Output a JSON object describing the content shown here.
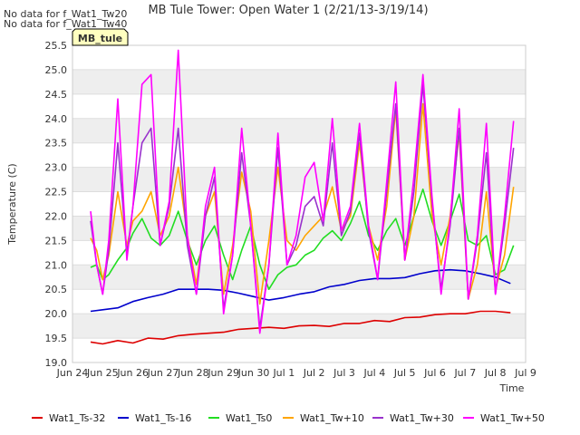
{
  "header": {
    "notes": [
      "No data for f_Wat1_Tw20",
      "No data for f_Wat1_Tw40"
    ],
    "badge": "MB_tule"
  },
  "chart_data": {
    "type": "line",
    "title": "MB Tule Tower: Open Water 1 (2/21/13-3/19/14)",
    "xlabel": "Time",
    "ylabel": "Temperature (C)",
    "ylim": [
      19.0,
      25.5
    ],
    "xlim": [
      0,
      15
    ],
    "yticks": [
      "19.0",
      "19.5",
      "20.0",
      "20.5",
      "21.0",
      "21.5",
      "22.0",
      "22.5",
      "23.0",
      "23.5",
      "24.0",
      "24.5",
      "25.0",
      "25.5"
    ],
    "xticks": [
      "Jun 24",
      "Jun 25",
      "Jun 26",
      "Jun 27",
      "Jun 28",
      "Jun 29",
      "Jun 30",
      "Jul 1",
      "Jul 2",
      "Jul 3",
      "Jul 4",
      "Jul 5",
      "Jul 6",
      "Jul 7",
      "Jul 8",
      "Jul 9"
    ],
    "grid": true,
    "legend_position": "bottom",
    "x_unit": "days after Jun 24 00:00",
    "series": [
      {
        "name": "Wat1_Ts-32",
        "color": "#dd0000",
        "x": [
          0.6,
          1.0,
          1.5,
          2.0,
          2.5,
          3.0,
          3.5,
          4.0,
          4.5,
          5.0,
          5.5,
          6.0,
          6.5,
          7.0,
          7.5,
          8.0,
          8.5,
          9.0,
          9.5,
          10.0,
          10.5,
          11.0,
          11.5,
          12.0,
          12.5,
          13.0,
          13.5,
          14.0,
          14.5
        ],
        "y": [
          19.42,
          19.38,
          19.45,
          19.4,
          19.5,
          19.48,
          19.55,
          19.58,
          19.6,
          19.62,
          19.68,
          19.7,
          19.72,
          19.7,
          19.75,
          19.76,
          19.74,
          19.8,
          19.8,
          19.86,
          19.84,
          19.92,
          19.93,
          19.98,
          20.0,
          20.0,
          20.05,
          20.05,
          20.02
        ]
      },
      {
        "name": "Wat1_Ts-16",
        "color": "#0000cc",
        "x": [
          0.6,
          1.0,
          1.5,
          2.0,
          2.5,
          3.0,
          3.5,
          4.0,
          4.5,
          5.0,
          5.5,
          6.0,
          6.5,
          7.0,
          7.5,
          8.0,
          8.5,
          9.0,
          9.5,
          10.0,
          10.5,
          11.0,
          11.5,
          12.0,
          12.5,
          13.0,
          13.5,
          14.0,
          14.5
        ],
        "y": [
          20.05,
          20.08,
          20.12,
          20.25,
          20.33,
          20.4,
          20.5,
          20.5,
          20.5,
          20.48,
          20.42,
          20.35,
          20.28,
          20.33,
          20.4,
          20.45,
          20.55,
          20.6,
          20.68,
          20.72,
          20.72,
          20.74,
          20.82,
          20.88,
          20.9,
          20.88,
          20.82,
          20.75,
          20.62
        ]
      },
      {
        "name": "Wat1_Ts0",
        "color": "#22dd22",
        "x": [
          0.6,
          0.8,
          1.0,
          1.2,
          1.5,
          1.8,
          2.0,
          2.3,
          2.6,
          2.9,
          3.2,
          3.5,
          3.8,
          4.1,
          4.4,
          4.7,
          5.0,
          5.3,
          5.6,
          5.9,
          6.2,
          6.5,
          6.8,
          7.1,
          7.4,
          7.7,
          8.0,
          8.3,
          8.6,
          8.9,
          9.2,
          9.5,
          9.8,
          10.1,
          10.4,
          10.7,
          11.0,
          11.3,
          11.6,
          11.9,
          12.2,
          12.5,
          12.8,
          13.1,
          13.4,
          13.7,
          14.0,
          14.3,
          14.6
        ],
        "y": [
          20.95,
          21.0,
          20.7,
          20.8,
          21.1,
          21.35,
          21.65,
          21.95,
          21.55,
          21.4,
          21.6,
          22.1,
          21.5,
          21.0,
          21.5,
          21.8,
          21.2,
          20.7,
          21.3,
          21.8,
          21.0,
          20.5,
          20.8,
          20.95,
          21.0,
          21.2,
          21.3,
          21.55,
          21.7,
          21.5,
          21.85,
          22.3,
          21.6,
          21.3,
          21.7,
          21.95,
          21.4,
          22.0,
          22.55,
          21.9,
          21.4,
          21.9,
          22.45,
          21.5,
          21.4,
          21.6,
          20.8,
          20.9,
          21.4
        ]
      },
      {
        "name": "Wat1_Tw+10",
        "color": "#ffa500",
        "x": [
          0.6,
          0.8,
          1.0,
          1.2,
          1.5,
          1.8,
          2.0,
          2.3,
          2.6,
          2.9,
          3.2,
          3.5,
          3.8,
          4.1,
          4.4,
          4.7,
          5.0,
          5.3,
          5.6,
          5.9,
          6.2,
          6.5,
          6.8,
          7.1,
          7.4,
          7.7,
          8.0,
          8.3,
          8.6,
          8.9,
          9.2,
          9.5,
          9.8,
          10.1,
          10.4,
          10.7,
          11.0,
          11.3,
          11.6,
          11.9,
          12.2,
          12.5,
          12.8,
          13.1,
          13.4,
          13.7,
          14.0,
          14.3,
          14.6
        ],
        "y": [
          21.55,
          21.3,
          20.7,
          21.2,
          22.5,
          21.4,
          21.9,
          22.1,
          22.5,
          21.6,
          22.0,
          23.0,
          21.6,
          20.6,
          22.0,
          22.5,
          20.4,
          21.4,
          22.9,
          22.1,
          20.2,
          21.5,
          23.0,
          21.5,
          21.3,
          21.6,
          21.8,
          22.0,
          22.6,
          21.7,
          22.0,
          23.5,
          21.8,
          21.1,
          22.2,
          24.2,
          21.1,
          22.0,
          24.3,
          22.0,
          21.0,
          22.0,
          23.7,
          20.3,
          21.0,
          22.5,
          20.5,
          21.2,
          22.6
        ]
      },
      {
        "name": "Wat1_Tw+30",
        "color": "#9932cc",
        "x": [
          0.6,
          0.8,
          1.0,
          1.2,
          1.5,
          1.8,
          2.0,
          2.3,
          2.6,
          2.9,
          3.2,
          3.5,
          3.8,
          4.1,
          4.4,
          4.7,
          5.0,
          5.3,
          5.6,
          5.9,
          6.2,
          6.5,
          6.8,
          7.1,
          7.4,
          7.7,
          8.0,
          8.3,
          8.6,
          8.9,
          9.2,
          9.5,
          9.8,
          10.1,
          10.4,
          10.7,
          11.0,
          11.3,
          11.6,
          11.9,
          12.2,
          12.5,
          12.8,
          13.1,
          13.4,
          13.7,
          14.0,
          14.3,
          14.6
        ],
        "y": [
          21.9,
          21.0,
          20.4,
          21.3,
          23.5,
          21.2,
          22.2,
          23.5,
          23.8,
          21.4,
          22.2,
          23.8,
          21.4,
          20.4,
          22.0,
          22.8,
          20.1,
          21.2,
          23.3,
          21.8,
          19.7,
          21.0,
          23.4,
          21.0,
          21.4,
          22.2,
          22.4,
          21.8,
          23.5,
          21.6,
          22.1,
          23.7,
          21.7,
          20.7,
          22.5,
          24.3,
          21.1,
          22.5,
          24.7,
          22.3,
          20.5,
          21.8,
          23.8,
          20.3,
          21.5,
          23.3,
          20.4,
          21.8,
          23.4
        ]
      },
      {
        "name": "Wat1_Tw+50",
        "color": "#ff00ff",
        "x": [
          0.6,
          0.8,
          1.0,
          1.2,
          1.5,
          1.8,
          2.0,
          2.3,
          2.6,
          2.9,
          3.2,
          3.5,
          3.8,
          4.1,
          4.4,
          4.7,
          5.0,
          5.3,
          5.6,
          5.9,
          6.2,
          6.5,
          6.8,
          7.1,
          7.4,
          7.7,
          8.0,
          8.3,
          8.6,
          8.9,
          9.2,
          9.5,
          9.8,
          10.1,
          10.4,
          10.7,
          11.0,
          11.3,
          11.6,
          11.9,
          12.2,
          12.5,
          12.8,
          13.1,
          13.4,
          13.7,
          14.0,
          14.3,
          14.6
        ],
        "y": [
          22.1,
          21.0,
          20.4,
          21.5,
          24.4,
          21.1,
          22.2,
          24.7,
          24.9,
          21.4,
          22.3,
          25.4,
          21.6,
          20.4,
          22.2,
          23.0,
          20.0,
          21.2,
          23.8,
          21.8,
          19.6,
          21.0,
          23.7,
          21.0,
          21.6,
          22.8,
          23.1,
          21.9,
          24.0,
          21.7,
          22.2,
          23.9,
          21.8,
          20.7,
          22.7,
          24.75,
          21.1,
          22.8,
          24.9,
          22.4,
          20.4,
          21.9,
          24.2,
          20.3,
          21.6,
          23.9,
          20.4,
          22.0,
          23.95
        ]
      }
    ]
  }
}
